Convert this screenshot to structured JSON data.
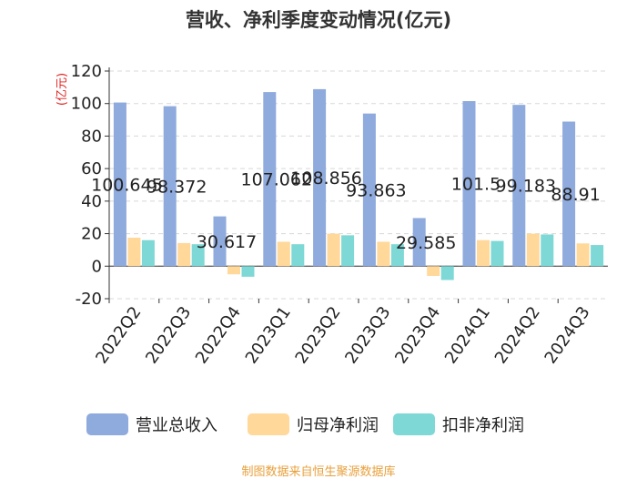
{
  "chart_data": {
    "type": "bar",
    "title": "营收、净利季度变动情况(亿元)",
    "ylabel": "(亿元)",
    "ylim": [
      -20,
      120
    ],
    "yticks": [
      -20,
      0,
      20,
      40,
      60,
      80,
      100,
      120
    ],
    "grid": true,
    "legend_position": "bottom",
    "categories": [
      "2022Q2",
      "2022Q3",
      "2022Q4",
      "2023Q1",
      "2023Q2",
      "2023Q3",
      "2023Q4",
      "2024Q1",
      "2024Q2",
      "2024Q3"
    ],
    "series": [
      {
        "name": "营业总收入",
        "color": "#8faadc",
        "values": [
          100.645,
          98.372,
          30.617,
          107.062,
          108.856,
          93.863,
          29.585,
          101.5,
          99.183,
          88.91
        ],
        "labels": [
          "100.645",
          "98.372",
          "30.617",
          "107.062",
          "108.856",
          "93.863",
          "29.585",
          "101.5",
          "99.183",
          "88.91"
        ]
      },
      {
        "name": "归母净利润",
        "color": "#ffd89a",
        "values": [
          17.5,
          14.2,
          -5.0,
          15.0,
          20.0,
          15.0,
          -6.0,
          16.0,
          20.0,
          14.0
        ]
      },
      {
        "name": "扣非净利润",
        "color": "#7dd8d6",
        "values": [
          16.0,
          13.5,
          -6.5,
          13.5,
          19.0,
          13.5,
          -8.5,
          15.5,
          19.5,
          13.0
        ]
      }
    ]
  },
  "source_note": "制图数据来自恒生聚源数据库"
}
